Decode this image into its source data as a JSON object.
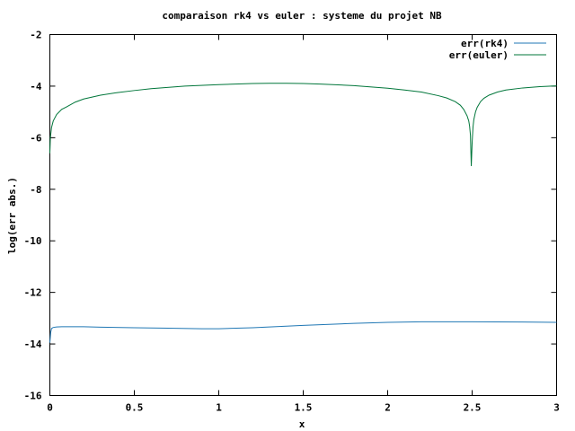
{
  "chart_data": {
    "type": "line",
    "title": "comparaison rk4 vs euler : systeme du projet NB",
    "xlabel": "x",
    "ylabel": "log(err abs.)",
    "xlim": [
      0,
      3
    ],
    "ylim": [
      -16,
      -2
    ],
    "xticks": [
      0,
      0.5,
      1,
      1.5,
      2,
      2.5,
      3
    ],
    "xtick_labels": [
      "0",
      "0.5",
      "1",
      "1.5",
      "2",
      "2.5",
      "3"
    ],
    "yticks": [
      -16,
      -14,
      -12,
      -10,
      -8,
      -6,
      -4,
      -2
    ],
    "ytick_labels": [
      "-16",
      "-14",
      "-12",
      "-10",
      "-8",
      "-6",
      "-4",
      "-2"
    ],
    "legend_position": "top-right",
    "grid": false,
    "series": [
      {
        "name": "err(rk4)",
        "color": "#1f77b4",
        "x": [
          0.0,
          0.005,
          0.01,
          0.02,
          0.04,
          0.07,
          0.1,
          0.2,
          0.3,
          0.5,
          0.7,
          0.9,
          1.0,
          1.2,
          1.5,
          1.8,
          2.0,
          2.2,
          2.5,
          2.8,
          3.0
        ],
        "y": [
          -13.95,
          -13.55,
          -13.4,
          -13.36,
          -13.34,
          -13.33,
          -13.33,
          -13.33,
          -13.35,
          -13.37,
          -13.39,
          -13.41,
          -13.41,
          -13.37,
          -13.28,
          -13.2,
          -13.16,
          -13.14,
          -13.14,
          -13.15,
          -13.16
        ]
      },
      {
        "name": "err(euler)",
        "color": "#00763a",
        "x": [
          0.0,
          0.003,
          0.01,
          0.02,
          0.04,
          0.07,
          0.1,
          0.15,
          0.2,
          0.3,
          0.4,
          0.5,
          0.6,
          0.8,
          1.0,
          1.2,
          1.3,
          1.4,
          1.5,
          1.6,
          1.8,
          2.0,
          2.1,
          2.2,
          2.3,
          2.35,
          2.4,
          2.43,
          2.45,
          2.47,
          2.48,
          2.485,
          2.49,
          2.495,
          2.5,
          2.505,
          2.51,
          2.52,
          2.53,
          2.55,
          2.57,
          2.6,
          2.65,
          2.7,
          2.8,
          2.9,
          3.0
        ],
        "y": [
          -6.6,
          -6.0,
          -5.6,
          -5.35,
          -5.1,
          -4.9,
          -4.8,
          -4.62,
          -4.5,
          -4.35,
          -4.25,
          -4.17,
          -4.1,
          -4.0,
          -3.94,
          -3.9,
          -3.89,
          -3.89,
          -3.9,
          -3.92,
          -3.98,
          -4.08,
          -4.15,
          -4.23,
          -4.37,
          -4.46,
          -4.6,
          -4.74,
          -4.9,
          -5.15,
          -5.35,
          -5.55,
          -5.9,
          -7.1,
          -6.2,
          -5.6,
          -5.3,
          -5.0,
          -4.82,
          -4.6,
          -4.47,
          -4.35,
          -4.23,
          -4.15,
          -4.07,
          -4.02,
          -3.99
        ]
      }
    ]
  }
}
